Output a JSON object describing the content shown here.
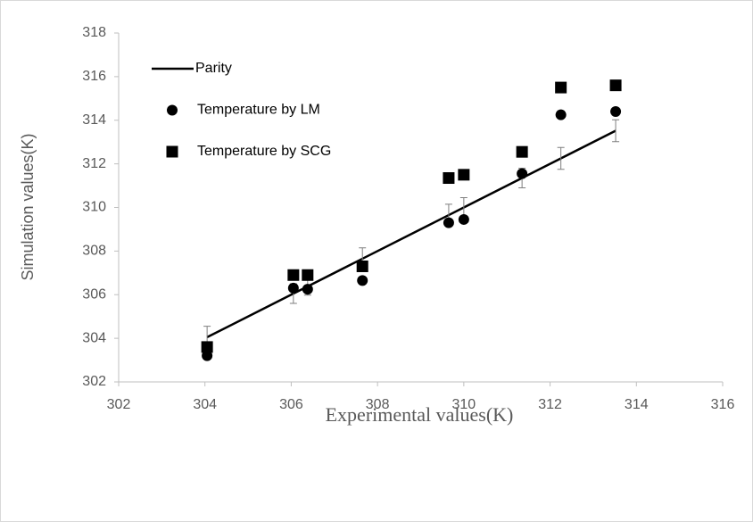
{
  "chart_data": {
    "type": "scatter",
    "x_label": "Experimental values(K)",
    "y_label": "Simulation values(K)",
    "xlim": [
      302,
      316
    ],
    "xticks": [
      302,
      304,
      306,
      308,
      310,
      312,
      314,
      316
    ],
    "ylim": [
      302,
      318
    ],
    "yticks": [
      302,
      304,
      306,
      308,
      310,
      312,
      314,
      316,
      318
    ],
    "x": [
      304.05,
      306.05,
      306.38,
      307.65,
      309.65,
      310.0,
      311.35,
      312.25,
      313.52
    ],
    "series": [
      {
        "name": "Parity",
        "color": "#000000",
        "style": "line",
        "values": [
          304.05,
          306.05,
          306.38,
          307.65,
          309.65,
          310.0,
          311.35,
          312.25,
          313.52
        ],
        "error": [
          0.5,
          0.45,
          0.4,
          0.5,
          0.5,
          0.45,
          0.45,
          0.5,
          0.5
        ]
      },
      {
        "name": "Temperature by LM",
        "color": "#000000",
        "style": "circle",
        "values": [
          303.2,
          306.3,
          306.25,
          306.65,
          309.3,
          309.45,
          311.55,
          314.25,
          314.4
        ]
      },
      {
        "name": "Temperature by SCG",
        "color": "#000000",
        "style": "square",
        "values": [
          303.6,
          306.9,
          306.9,
          307.3,
          311.35,
          311.5,
          312.55,
          315.5,
          315.6
        ]
      }
    ]
  }
}
